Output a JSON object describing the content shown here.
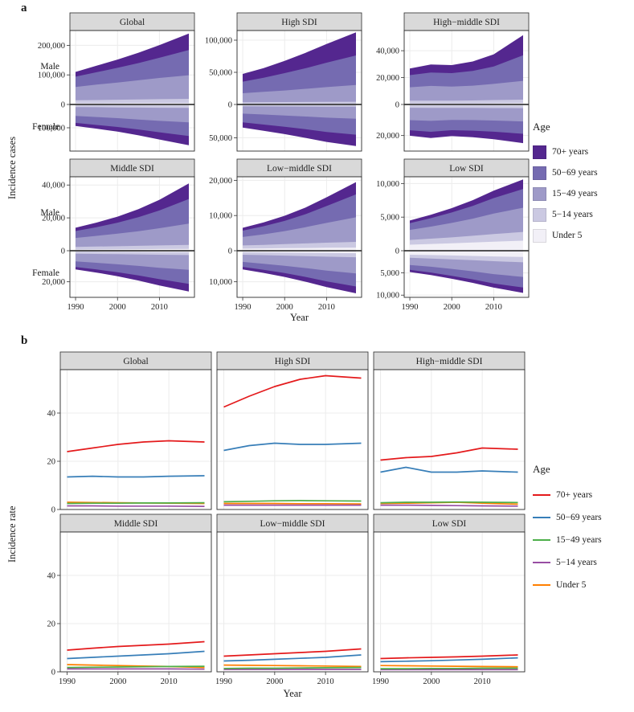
{
  "figure": {
    "panel_a": {
      "label": "a",
      "row_labels": [
        "Male",
        "Female"
      ],
      "legend_title": "Age"
    },
    "panel_b": {
      "label": "b",
      "legend_title": "Age"
    }
  },
  "age_groups": [
    {
      "label": "70+ years",
      "area_color": "#54278f",
      "line_color": "#e41a1c"
    },
    {
      "label": "50−69 years",
      "area_color": "#756bb1",
      "line_color": "#377eb8"
    },
    {
      "label": "15−49 years",
      "area_color": "#9e9ac8",
      "line_color": "#4daf4a"
    },
    {
      "label": "5−14 years",
      "area_color": "#cbc9e2",
      "line_color": "#984ea3"
    },
    {
      "label": "Under 5",
      "area_color": "#f2f0f7",
      "line_color": "#ff7f00"
    }
  ],
  "chart_data": [
    {
      "panel": "a",
      "type": "area",
      "ylabel": "Incidence cases",
      "xlabel": "Year",
      "x": [
        1990,
        1995,
        2000,
        2005,
        2010,
        2017
      ],
      "x_ticks": [
        1990,
        2000,
        2010
      ],
      "age_groups": [
        "70+ years",
        "50−69 years",
        "15−49 years",
        "5−14 years",
        "Under 5"
      ],
      "facets": [
        {
          "title": "Global",
          "male_axis": {
            "ticks": [
              0,
              100000,
              200000
            ],
            "max": 250000
          },
          "female_axis": {
            "ticks": [
              100000
            ],
            "max": 200000
          },
          "male": [
            [
              16000,
              22000,
              28000,
              35000,
              43000,
              56000
            ],
            [
              35000,
              42000,
              50000,
              58000,
              68000,
              85000
            ],
            [
              45000,
              52000,
              58000,
              65000,
              72000,
              80000
            ],
            [
              10000,
              10800,
              11500,
              12300,
              13000,
              14000
            ],
            [
              4000,
              4200,
              4400,
              4600,
              4800,
              5000
            ]
          ],
          "female": [
            [
              13000,
              16000,
              20000,
              25000,
              31000,
              40000
            ],
            [
              30000,
              34000,
              38000,
              43000,
              49000,
              58000
            ],
            [
              38000,
              42000,
              46000,
              51000,
              56000,
              62000
            ],
            [
              8000,
              8600,
              9200,
              9800,
              10400,
              11000
            ],
            [
              3000,
              3200,
              3400,
              3600,
              3800,
              4000
            ]
          ]
        },
        {
          "title": "High SDI",
          "male_axis": {
            "ticks": [
              0,
              50000,
              100000
            ],
            "max": 115000
          },
          "female_axis": {
            "ticks": [
              50000
            ],
            "max": 70000
          },
          "male": [
            [
              12000,
              15000,
              19000,
              24000,
              29000,
              36000
            ],
            [
              18000,
              22000,
              27000,
              32000,
              38000,
              46000
            ],
            [
              14000,
              16000,
              18000,
              20500,
              23000,
              26000
            ],
            [
              2500,
              2600,
              2700,
              2800,
              2900,
              3000
            ],
            [
              1000,
              1040,
              1080,
              1120,
              1160,
              1200
            ]
          ],
          "female": [
            [
              8000,
              9500,
              11000,
              13000,
              15000,
              17000
            ],
            [
              13000,
              15000,
              17000,
              19000,
              21500,
              24000
            ],
            [
              11000,
              12200,
              13500,
              15000,
              16500,
              18000
            ],
            [
              2000,
              2080,
              2160,
              2240,
              2320,
              2400
            ],
            [
              800,
              840,
              880,
              920,
              960,
              1000
            ]
          ]
        },
        {
          "title": "High−middle SDI",
          "male_axis": {
            "ticks": [
              0,
              20000,
              40000
            ],
            "max": 55000
          },
          "female_axis": {
            "ticks": [
              20000
            ],
            "max": 30000
          },
          "male": [
            [
              5000,
              6000,
              6000,
              7000,
              9000,
              15000
            ],
            [
              9000,
              10000,
              10000,
              11000,
              13000,
              19000
            ],
            [
              10000,
              11000,
              10500,
              11000,
              12000,
              14000
            ],
            [
              2000,
              2000,
              2000,
              2200,
              2400,
              2600
            ],
            [
              800,
              800,
              800,
              800,
              900,
              1000
            ]
          ],
          "female": [
            [
              3500,
              4000,
              3800,
              4200,
              4800,
              6000
            ],
            [
              6500,
              7000,
              6600,
              6800,
              7200,
              8000
            ],
            [
              8000,
              8400,
              7800,
              7800,
              8000,
              8500
            ],
            [
              1500,
              1550,
              1550,
              1600,
              1650,
              1700
            ],
            [
              600,
              620,
              620,
              650,
              680,
              700
            ]
          ]
        },
        {
          "title": "Middle SDI",
          "male_axis": {
            "ticks": [
              0,
              20000,
              40000
            ],
            "max": 45000
          },
          "female_axis": {
            "ticks": [
              20000
            ],
            "max": 30000
          },
          "male": [
            [
              2000,
              2800,
              3700,
              4900,
              6500,
              9500
            ],
            [
              4200,
              5300,
              6700,
              8500,
              10800,
              15000
            ],
            [
              5500,
              6500,
              7600,
              8900,
              10500,
              13000
            ],
            [
              1600,
              1750,
              1900,
              2050,
              2200,
              2400
            ],
            [
              700,
              780,
              860,
              940,
              1020,
              1100
            ]
          ],
          "female": [
            [
              1500,
              2000,
              2600,
              3300,
              4100,
              5000
            ],
            [
              3600,
              4300,
              5100,
              6100,
              7300,
              9000
            ],
            [
              5000,
              5700,
              6500,
              7400,
              8400,
              9500
            ],
            [
              1300,
              1400,
              1500,
              1620,
              1750,
              1900
            ],
            [
              600,
              660,
              720,
              780,
              840,
              900
            ]
          ]
        },
        {
          "title": "Low−middle SDI",
          "male_axis": {
            "ticks": [
              0,
              10000,
              20000
            ],
            "max": 21000
          },
          "female_axis": {
            "ticks": [
              10000
            ],
            "max": 15000
          },
          "male": [
            [
              800,
              1100,
              1450,
              1900,
              2500,
              3500
            ],
            [
              1800,
              2300,
              2900,
              3700,
              4800,
              6500
            ],
            [
              2400,
              3000,
              3700,
              4600,
              5600,
              7000
            ],
            [
              900,
              1000,
              1150,
              1300,
              1450,
              1600
            ],
            [
              600,
              660,
              720,
              780,
              840,
              900
            ]
          ],
          "female": [
            [
              800,
              1000,
              1250,
              1550,
              1850,
              2200
            ],
            [
              1600,
              1950,
              2350,
              2850,
              3450,
              4200
            ],
            [
              2300,
              2750,
              3250,
              3850,
              4500,
              5200
            ],
            [
              800,
              880,
              970,
              1070,
              1180,
              1300
            ],
            [
              500,
              550,
              610,
              670,
              730,
              800
            ]
          ]
        },
        {
          "title": "Low SDI",
          "male_axis": {
            "ticks": [
              0,
              5000,
              10000
            ],
            "max": 11000
          },
          "female_axis": {
            "ticks": [
              5000,
              10000
            ],
            "max": 10500
          },
          "male": [
            [
              400,
              500,
              650,
              850,
              1100,
              1400
            ],
            [
              1000,
              1250,
              1550,
              1900,
              2300,
              2800
            ],
            [
              1500,
              1800,
              2150,
              2550,
              3050,
              3600
            ],
            [
              700,
              790,
              890,
              1000,
              1130,
              1300
            ],
            [
              900,
              1000,
              1100,
              1220,
              1350,
              1500
            ]
          ],
          "female": [
            [
              500,
              580,
              680,
              800,
              950,
              1200
            ],
            [
              1100,
              1300,
              1550,
              1800,
              2100,
              2400
            ],
            [
              1600,
              1850,
              2150,
              2500,
              2900,
              3300
            ],
            [
              700,
              780,
              870,
              970,
              1080,
              1200
            ],
            [
              900,
              980,
              1070,
              1170,
              1280,
              1400
            ]
          ]
        }
      ]
    },
    {
      "panel": "b",
      "type": "line",
      "ylabel": "Incidence rate",
      "xlabel": "Year",
      "x": [
        1990,
        1995,
        2000,
        2005,
        2010,
        2017
      ],
      "x_ticks": [
        1990,
        2000,
        2010
      ],
      "y_ticks": [
        0,
        20,
        40
      ],
      "y_max": 58,
      "age_groups": [
        "70+ years",
        "50−69 years",
        "15−49 years",
        "5−14 years",
        "Under 5"
      ],
      "facets": [
        {
          "title": "Global",
          "series": [
            [
              24,
              25.5,
              27,
              28,
              28.5,
              28
            ],
            [
              13.5,
              13.8,
              13.5,
              13.5,
              13.8,
              14
            ],
            [
              2.5,
              2.6,
              2.6,
              2.7,
              2.7,
              2.8
            ],
            [
              1.5,
              1.5,
              1.4,
              1.4,
              1.4,
              1.3
            ],
            [
              3.0,
              2.9,
              2.8,
              2.7,
              2.6,
              2.5
            ]
          ]
        },
        {
          "title": "High SDI",
          "series": [
            [
              42.5,
              47,
              51,
              54,
              55.5,
              54.5
            ],
            [
              24.5,
              26.5,
              27.5,
              27,
              27,
              27.5
            ],
            [
              3.2,
              3.4,
              3.6,
              3.7,
              3.6,
              3.5
            ],
            [
              1.8,
              1.8,
              1.8,
              1.8,
              1.8,
              1.8
            ],
            [
              2.5,
              2.5,
              2.5,
              2.4,
              2.4,
              2.3
            ]
          ]
        },
        {
          "title": "High−middle SDI",
          "series": [
            [
              20.5,
              21.5,
              22,
              23.5,
              25.5,
              25
            ],
            [
              15.5,
              17.5,
              15.5,
              15.5,
              16,
              15.5
            ],
            [
              2.8,
              3.0,
              3.0,
              3.1,
              3.0,
              2.9
            ],
            [
              1.8,
              1.8,
              1.7,
              1.6,
              1.5,
              1.4
            ],
            [
              2.5,
              2.6,
              2.8,
              3.0,
              2.6,
              2.2
            ]
          ]
        },
        {
          "title": "Middle SDI",
          "series": [
            [
              9,
              9.8,
              10.5,
              11,
              11.5,
              12.5
            ],
            [
              5.5,
              6,
              6.5,
              7,
              7.5,
              8.5
            ],
            [
              1.8,
              1.9,
              2.0,
              2.1,
              2.2,
              2.3
            ],
            [
              1.2,
              1.2,
              1.2,
              1.2,
              1.2,
              1.1
            ],
            [
              3.0,
              2.8,
              2.6,
              2.4,
              2.2,
              1.8
            ]
          ]
        },
        {
          "title": "Low−middle SDI",
          "series": [
            [
              6.5,
              7,
              7.5,
              8,
              8.5,
              9.5
            ],
            [
              4.5,
              4.8,
              5.2,
              5.6,
              6,
              7
            ],
            [
              1.4,
              1.5,
              1.5,
              1.6,
              1.7,
              1.8
            ],
            [
              1.0,
              1.0,
              1.0,
              1.0,
              1.0,
              1.0
            ],
            [
              2.8,
              2.7,
              2.6,
              2.5,
              2.4,
              2.2
            ]
          ]
        },
        {
          "title": "Low SDI",
          "series": [
            [
              5.5,
              5.8,
              6,
              6.2,
              6.5,
              7
            ],
            [
              4.2,
              4.4,
              4.6,
              4.9,
              5.2,
              5.8
            ],
            [
              1.3,
              1.3,
              1.4,
              1.4,
              1.5,
              1.5
            ],
            [
              0.9,
              0.9,
              0.9,
              0.9,
              0.9,
              0.9
            ],
            [
              2.6,
              2.5,
              2.4,
              2.3,
              2.2,
              2.1
            ]
          ]
        }
      ]
    }
  ]
}
